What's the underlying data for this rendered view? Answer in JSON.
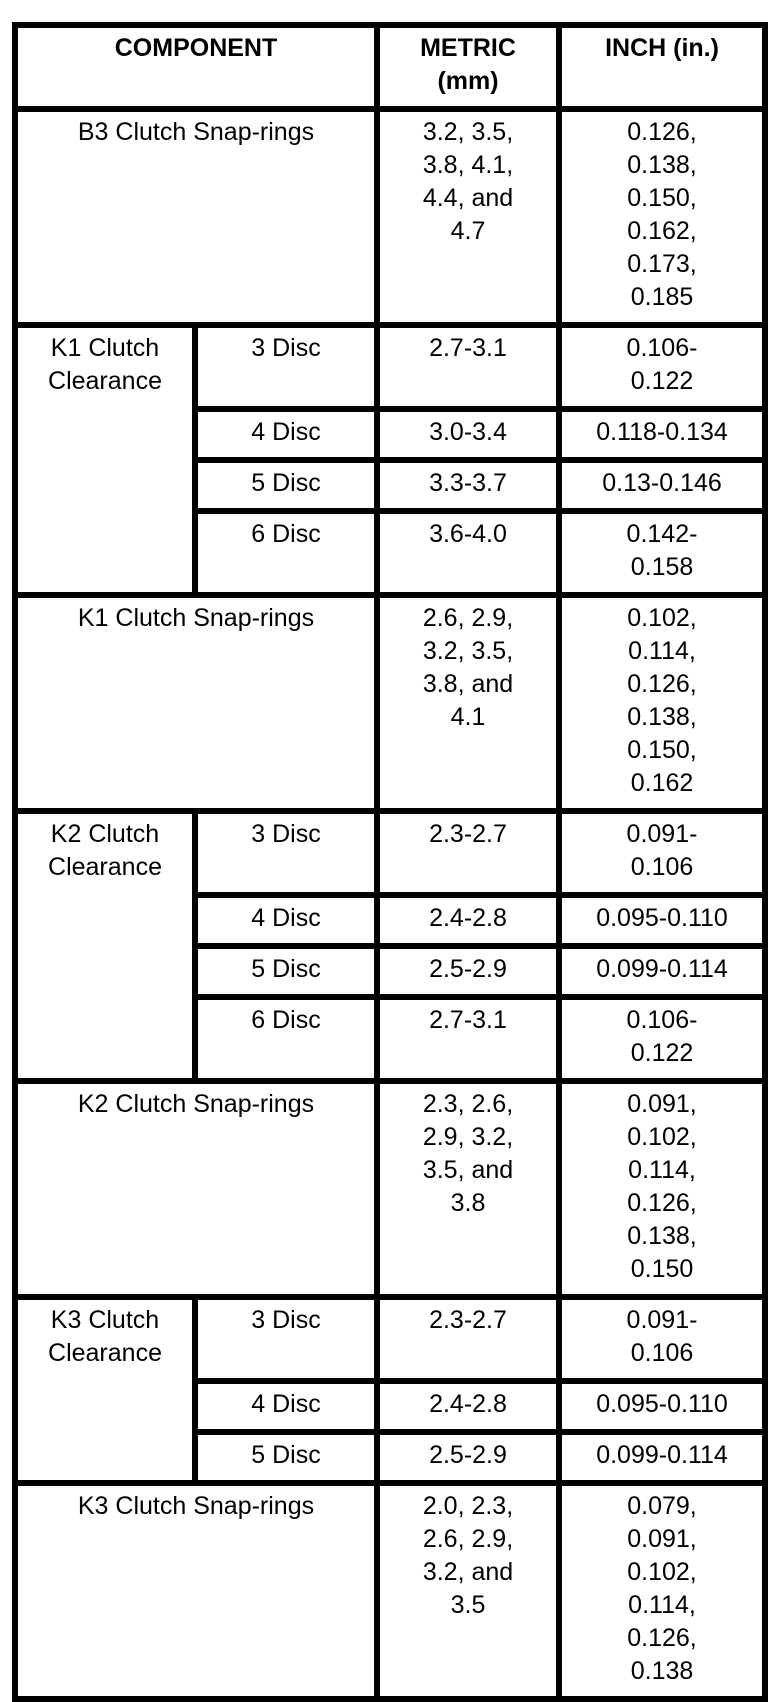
{
  "table": {
    "headers": {
      "component": "COMPONENT",
      "metric": [
        "METRIC",
        "(mm)"
      ],
      "inch": "INCH (in.)"
    },
    "b3_snap": {
      "label": "B3 Clutch Snap-rings",
      "metric": [
        "3.2, 3.5,",
        "3.8, 4.1,",
        "4.4, and",
        "4.7"
      ],
      "inch": [
        "0.126,",
        "0.138,",
        "0.150,",
        "0.162,",
        "0.173,",
        "0.185"
      ]
    },
    "k1_clearance": {
      "label": [
        "K1 Clutch",
        "Clearance"
      ],
      "rows": [
        {
          "disc": "3 Disc",
          "metric": "2.7-3.1",
          "inch": [
            "0.106-",
            "0.122"
          ]
        },
        {
          "disc": "4 Disc",
          "metric": "3.0-3.4",
          "inch": "0.118-0.134"
        },
        {
          "disc": "5 Disc",
          "metric": "3.3-3.7",
          "inch": "0.13-0.146"
        },
        {
          "disc": "6 Disc",
          "metric": "3.6-4.0",
          "inch": [
            "0.142-",
            "0.158"
          ]
        }
      ]
    },
    "k1_snap": {
      "label": "K1 Clutch Snap-rings",
      "metric": [
        "2.6, 2.9,",
        "3.2, 3.5,",
        "3.8, and",
        "4.1"
      ],
      "inch": [
        "0.102,",
        "0.114,",
        "0.126,",
        "0.138,",
        "0.150,",
        "0.162"
      ]
    },
    "k2_clearance": {
      "label": [
        "K2 Clutch",
        "Clearance"
      ],
      "rows": [
        {
          "disc": "3 Disc",
          "metric": "2.3-2.7",
          "inch": [
            "0.091-",
            "0.106"
          ]
        },
        {
          "disc": "4 Disc",
          "metric": "2.4-2.8",
          "inch": "0.095-0.110"
        },
        {
          "disc": "5 Disc",
          "metric": "2.5-2.9",
          "inch": "0.099-0.114"
        },
        {
          "disc": "6 Disc",
          "metric": "2.7-3.1",
          "inch": [
            "0.106-",
            "0.122"
          ]
        }
      ]
    },
    "k2_snap": {
      "label": "K2 Clutch Snap-rings",
      "metric": [
        "2.3, 2.6,",
        "2.9, 3.2,",
        "3.5, and",
        "3.8"
      ],
      "inch": [
        "0.091,",
        "0.102,",
        "0.114,",
        "0.126,",
        "0.138,",
        "0.150"
      ]
    },
    "k3_clearance": {
      "label": [
        "K3 Clutch",
        "Clearance"
      ],
      "rows": [
        {
          "disc": "3 Disc",
          "metric": "2.3-2.7",
          "inch": [
            "0.091-",
            "0.106"
          ]
        },
        {
          "disc": "4 Disc",
          "metric": "2.4-2.8",
          "inch": "0.095-0.110"
        },
        {
          "disc": "5 Disc",
          "metric": "2.5-2.9",
          "inch": "0.099-0.114"
        }
      ]
    },
    "k3_snap": {
      "label": "K3 Clutch Snap-rings",
      "metric": [
        "2.0, 2.3,",
        "2.6, 2.9,",
        "3.2, and",
        "3.5"
      ],
      "inch": [
        "0.079,",
        "0.091,",
        "0.102,",
        "0.114,",
        "0.126,",
        "0.138"
      ]
    }
  }
}
